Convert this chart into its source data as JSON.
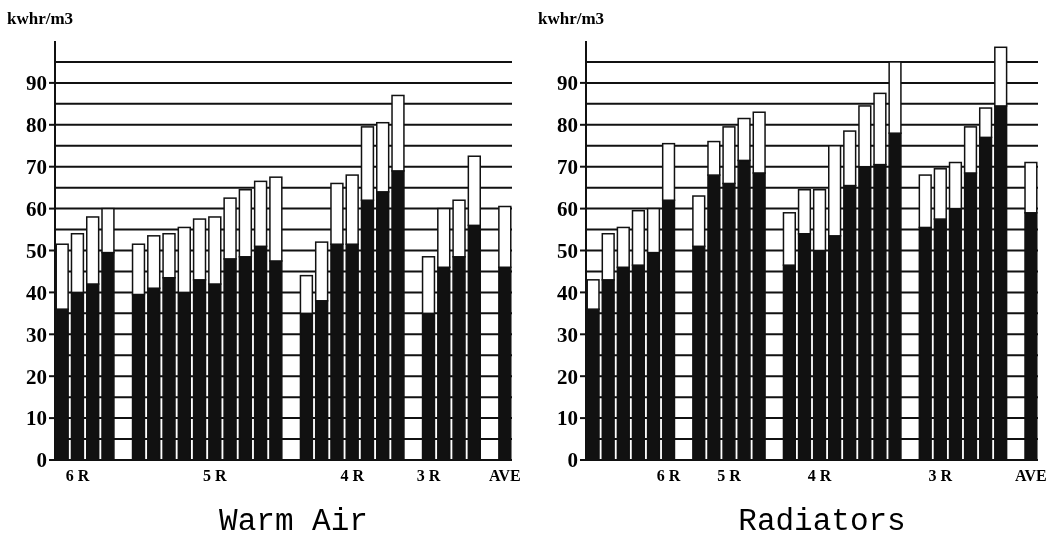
{
  "chart_data": [
    {
      "type": "bar",
      "title": "Warm Air",
      "ylabel": "kwhr/m3",
      "stacked": true,
      "grid": "y",
      "ylim": [
        0,
        100
      ],
      "yticks": [
        0,
        {
          "value": 5,
          "label": null
        },
        10,
        {
          "value": 15,
          "label": null
        },
        20,
        {
          "value": 25,
          "label": null
        },
        30,
        {
          "value": 35,
          "label": null
        },
        40,
        {
          "value": 45,
          "label": null
        },
        50,
        {
          "value": 55,
          "label": null
        },
        60,
        {
          "value": 65,
          "label": null
        },
        70,
        {
          "value": 75,
          "label": null
        },
        80,
        {
          "value": 85,
          "label": null
        },
        90,
        {
          "value": 95,
          "label": null
        }
      ],
      "categories": [
        null,
        "6 R",
        null,
        null,
        null,
        null,
        null,
        null,
        null,
        null,
        "5 R",
        null,
        null,
        null,
        null,
        null,
        null,
        null,
        null,
        "4 R",
        null,
        null,
        null,
        null,
        "3 R",
        null,
        null,
        null,
        null,
        "AVE"
      ],
      "series": [
        {
          "color": "#111111",
          "values": [
            36,
            40,
            42,
            49.5,
            null,
            39.5,
            41,
            43.5,
            40,
            43,
            42,
            48,
            48.5,
            51,
            47.5,
            null,
            35,
            38,
            51.5,
            51.5,
            62,
            64,
            69,
            null,
            35,
            46,
            48.5,
            56,
            null,
            46
          ]
        },
        {
          "color": "#ffffff",
          "values": [
            15.5,
            14,
            16,
            10.5,
            null,
            12,
            12.5,
            10.5,
            15.5,
            14.5,
            16,
            14.5,
            16,
            15.5,
            20,
            null,
            9,
            14,
            14.5,
            16.5,
            17.5,
            16.5,
            18,
            null,
            13.5,
            14,
            13.5,
            16.5,
            null,
            14.5
          ]
        }
      ]
    },
    {
      "type": "bar",
      "title": "Radiators",
      "ylabel": "kwhr/m3",
      "stacked": true,
      "grid": "y",
      "ylim": [
        0,
        100
      ],
      "yticks": [
        0,
        {
          "value": 5,
          "label": null
        },
        10,
        {
          "value": 15,
          "label": null
        },
        20,
        {
          "value": 25,
          "label": null
        },
        30,
        {
          "value": 35,
          "label": null
        },
        40,
        {
          "value": 45,
          "label": null
        },
        50,
        {
          "value": 55,
          "label": null
        },
        60,
        {
          "value": 65,
          "label": null
        },
        70,
        {
          "value": 75,
          "label": null
        },
        80,
        {
          "value": 85,
          "label": null
        },
        90,
        {
          "value": 95,
          "label": null
        }
      ],
      "categories": [
        null,
        null,
        null,
        null,
        null,
        "6 R",
        null,
        null,
        null,
        "5 R",
        null,
        null,
        null,
        null,
        null,
        "4 R",
        null,
        null,
        null,
        null,
        null,
        null,
        null,
        "3 R",
        null,
        null,
        null,
        null,
        null,
        "AVE"
      ],
      "series": [
        {
          "color": "#111111",
          "values": [
            36,
            43,
            46,
            46.5,
            49.5,
            62,
            null,
            51,
            68,
            66,
            71.5,
            68.5,
            null,
            46.5,
            54,
            50,
            53.5,
            65.5,
            70,
            70.5,
            78,
            null,
            55.5,
            57.5,
            60,
            68.5,
            77,
            84.5,
            null,
            59
          ]
        },
        {
          "color": "#ffffff",
          "values": [
            7,
            11,
            9.5,
            13,
            10.5,
            13.5,
            null,
            12,
            8,
            13.5,
            10,
            14.5,
            null,
            12.5,
            10.5,
            14.5,
            21.5,
            13,
            14.5,
            17,
            17,
            null,
            12.5,
            12,
            11,
            11,
            7,
            14,
            null,
            12
          ]
        }
      ]
    }
  ]
}
